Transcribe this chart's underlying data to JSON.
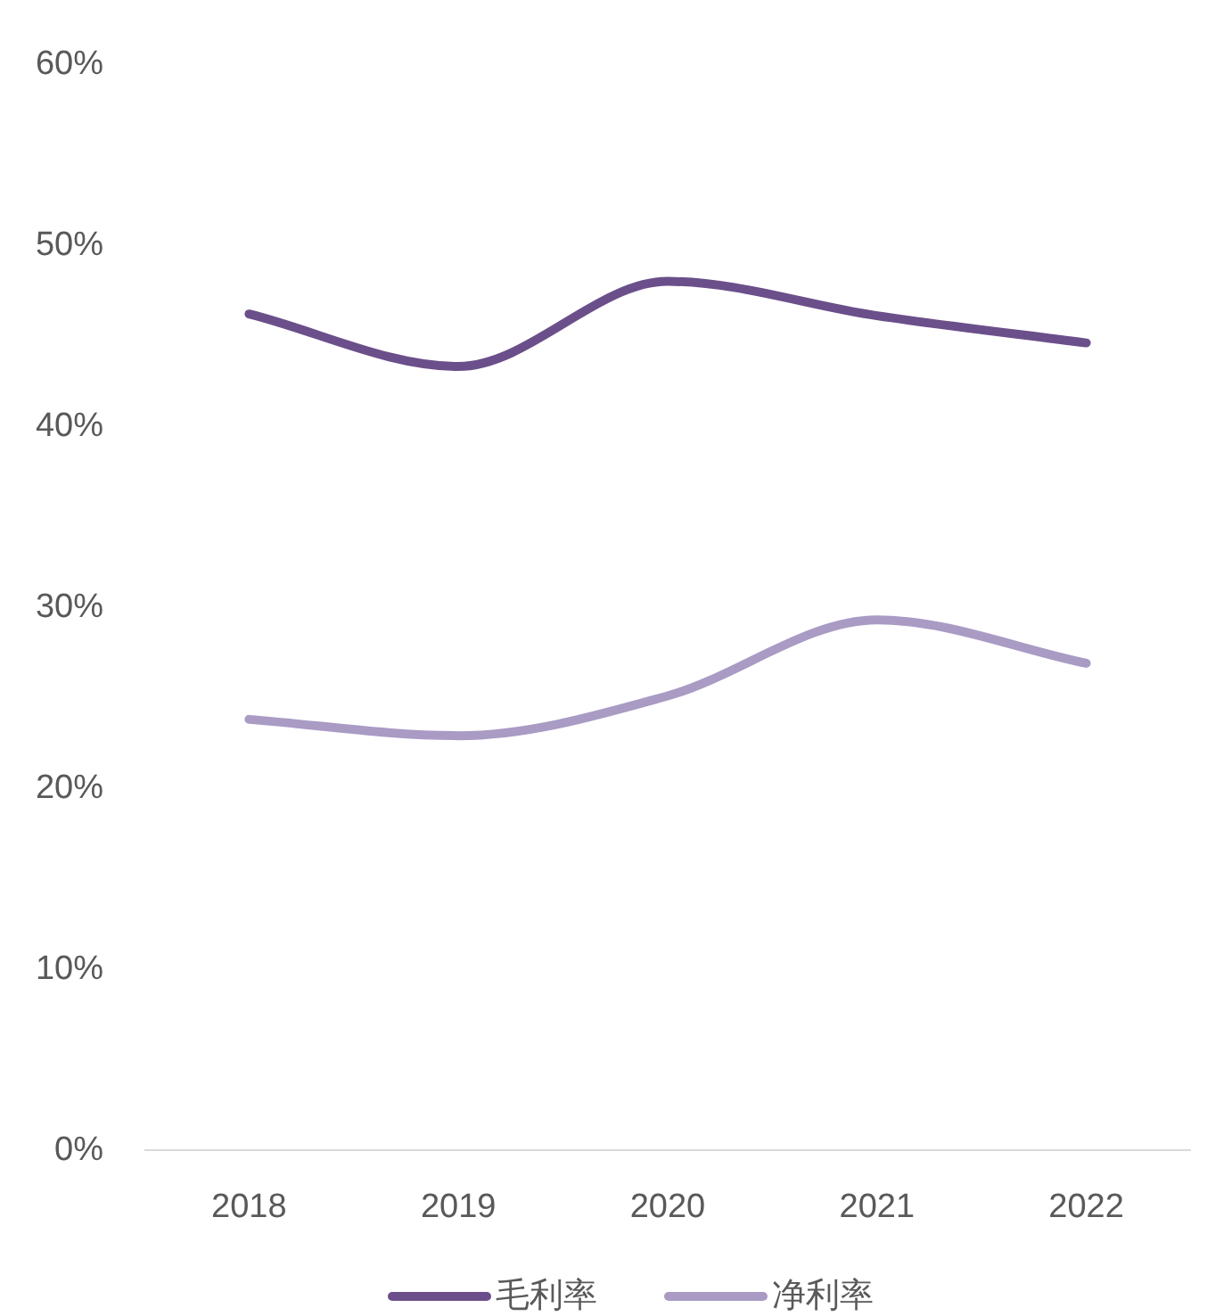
{
  "chart_data": {
    "type": "line",
    "categories": [
      "2018",
      "2019",
      "2020",
      "2021",
      "2022"
    ],
    "series": [
      {
        "name": "毛利率",
        "color": "#6b4f8a",
        "values": [
          46.2,
          43.3,
          48.0,
          46.1,
          44.6
        ]
      },
      {
        "name": "净利率",
        "color": "#a99bc4",
        "values": [
          23.8,
          22.9,
          25.1,
          29.3,
          26.9
        ]
      }
    ],
    "ylim": [
      0,
      60
    ],
    "yticks": [
      {
        "value": 0,
        "label": "0%"
      },
      {
        "value": 10,
        "label": "10%"
      },
      {
        "value": 20,
        "label": "20%"
      },
      {
        "value": 30,
        "label": "30%"
      },
      {
        "value": 40,
        "label": "40%"
      },
      {
        "value": 50,
        "label": "50%"
      },
      {
        "value": 60,
        "label": "60%"
      }
    ],
    "grid": false,
    "legend": "bottom",
    "marker": "none",
    "line_style": "solid"
  }
}
